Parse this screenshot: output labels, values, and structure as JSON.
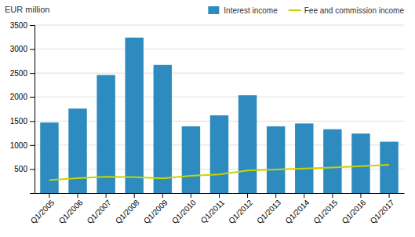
{
  "chart_data": {
    "type": "bar",
    "ylabel": "EUR million",
    "categories": [
      "Q1/2005",
      "Q1/2006",
      "Q1/2007",
      "Q1/2008",
      "Q1/2009",
      "Q1/2010",
      "Q1/2011",
      "Q1/2012",
      "Q1/2013",
      "Q1/2014",
      "Q1/2015",
      "Q1/2016",
      "Q1/2017"
    ],
    "series": [
      {
        "name": "Interest income",
        "type": "bar",
        "color": "#2e8bbf",
        "values": [
          1470,
          1760,
          2460,
          3240,
          2670,
          1390,
          1620,
          2040,
          1390,
          1450,
          1330,
          1240,
          1070
        ]
      },
      {
        "name": "Fee and commission income",
        "type": "line",
        "color": "#c8d400",
        "values": [
          270,
          310,
          340,
          330,
          305,
          360,
          390,
          470,
          490,
          510,
          530,
          560,
          590
        ]
      }
    ],
    "ylim": [
      0,
      3500
    ],
    "yticks": [
      500,
      1000,
      1500,
      2000,
      2500,
      3000,
      3500
    ],
    "grid": true,
    "legend": "upper right"
  }
}
